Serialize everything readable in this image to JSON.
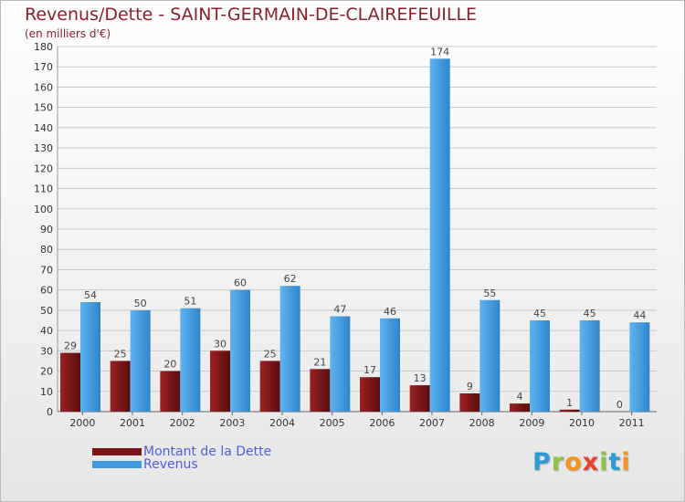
{
  "title": "Revenus/Dette - SAINT-GERMAIN-DE-CLAIREFEUILLE",
  "subtitle": "(en milliers d'€)",
  "logo": {
    "text": "Proxiti",
    "letters": [
      {
        "ch": "P",
        "color": "#2e9bd6"
      },
      {
        "ch": "r",
        "color": "#8cc63f"
      },
      {
        "ch": "o",
        "color": "#f7941d"
      },
      {
        "ch": "x",
        "color": "#e8412c"
      },
      {
        "ch": "i",
        "color": "#8cc63f"
      },
      {
        "ch": "t",
        "color": "#2e9bd6"
      },
      {
        "ch": "i",
        "color": "#f7941d"
      }
    ]
  },
  "colors": {
    "dette": "#7a1416",
    "revenus": "#3f9be0",
    "grid": "#c8c8c8",
    "axis_text": "#333333",
    "value_text": "#444444"
  },
  "chart_data": {
    "type": "bar",
    "categories": [
      "2000",
      "2001",
      "2002",
      "2003",
      "2004",
      "2005",
      "2006",
      "2007",
      "2008",
      "2009",
      "2010",
      "2011"
    ],
    "series": [
      {
        "name": "Montant de la Dette",
        "values": [
          29,
          25,
          20,
          30,
          25,
          21,
          17,
          13,
          9,
          4,
          1,
          0
        ]
      },
      {
        "name": "Revenus",
        "values": [
          54,
          50,
          51,
          60,
          62,
          47,
          46,
          174,
          55,
          45,
          45,
          44
        ]
      }
    ],
    "ylim": [
      0,
      180
    ],
    "yticks": [
      0,
      10,
      20,
      30,
      40,
      50,
      60,
      70,
      80,
      90,
      100,
      110,
      120,
      130,
      140,
      150,
      160,
      170,
      180
    ],
    "grid": true,
    "legend_position": "bottom-left"
  }
}
